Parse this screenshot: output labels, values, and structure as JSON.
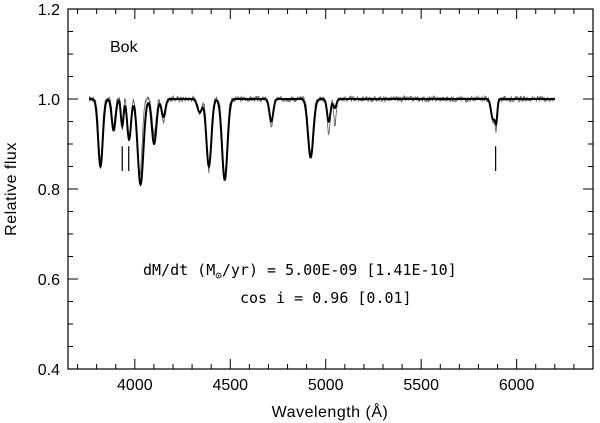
{
  "chart_data": {
    "type": "line",
    "xlabel": "Wavelength (Å)",
    "ylabel": "Relative flux",
    "xlim": [
      3650,
      6400
    ],
    "ylim": [
      0.4,
      1.2
    ],
    "x_ticks": [
      4000,
      4500,
      5000,
      5500,
      6000
    ],
    "y_ticks": [
      0.4,
      0.6,
      0.8,
      1.0,
      1.2
    ],
    "x_tick_labels": [
      "4000",
      "4500",
      "5000",
      "5500",
      "6000"
    ],
    "y_tick_labels": [
      "0.4",
      "0.6",
      "0.8",
      "1.0",
      "1.2"
    ],
    "annotation_top": "Bok",
    "annotation_line1_prefix": "dM/dt (M",
    "annotation_line1_sun": "⊙",
    "annotation_line1_suffix": "/yr) = 5.00E-09 [1.41E-10]",
    "annotation_line2": "cos i = 0.96 [0.01]",
    "marker_wavelengths": [
      3934,
      3968,
      5890
    ],
    "continuum": 1.0,
    "x_range": [
      3760,
      6200
    ],
    "model_lines": [
      {
        "center": 3820,
        "depth": 0.15,
        "width": 12
      },
      {
        "center": 3889,
        "depth": 0.07,
        "width": 10
      },
      {
        "center": 3934,
        "depth": 0.06,
        "width": 7
      },
      {
        "center": 3970,
        "depth": 0.09,
        "width": 10
      },
      {
        "center": 4030,
        "depth": 0.19,
        "width": 15
      },
      {
        "center": 4101,
        "depth": 0.1,
        "width": 12
      },
      {
        "center": 4150,
        "depth": 0.04,
        "width": 10
      },
      {
        "center": 4340,
        "depth": 0.03,
        "width": 12
      },
      {
        "center": 4388,
        "depth": 0.15,
        "width": 13
      },
      {
        "center": 4471,
        "depth": 0.18,
        "width": 14
      },
      {
        "center": 4715,
        "depth": 0.05,
        "width": 10
      },
      {
        "center": 4921,
        "depth": 0.13,
        "width": 14
      },
      {
        "center": 5016,
        "depth": 0.05,
        "width": 9
      },
      {
        "center": 5048,
        "depth": 0.02,
        "width": 8
      },
      {
        "center": 5876,
        "depth": 0.045,
        "width": 10
      },
      {
        "center": 5893,
        "depth": 0.045,
        "width": 6
      }
    ],
    "observed_lines": [
      {
        "center": 3820,
        "depth": 0.14,
        "width": 10
      },
      {
        "center": 3889,
        "depth": 0.06,
        "width": 8
      },
      {
        "center": 3934,
        "depth": 0.07,
        "width": 5
      },
      {
        "center": 3970,
        "depth": 0.09,
        "width": 8
      },
      {
        "center": 4026,
        "depth": 0.17,
        "width": 12
      },
      {
        "center": 4101,
        "depth": 0.08,
        "width": 10
      },
      {
        "center": 4150,
        "depth": 0.05,
        "width": 10
      },
      {
        "center": 4340,
        "depth": 0.03,
        "width": 10
      },
      {
        "center": 4388,
        "depth": 0.16,
        "width": 11
      },
      {
        "center": 4471,
        "depth": 0.17,
        "width": 12
      },
      {
        "center": 4715,
        "depth": 0.06,
        "width": 9
      },
      {
        "center": 4921,
        "depth": 0.12,
        "width": 12
      },
      {
        "center": 5016,
        "depth": 0.08,
        "width": 7
      },
      {
        "center": 5048,
        "depth": 0.06,
        "width": 6
      },
      {
        "center": 5876,
        "depth": 0.05,
        "width": 9
      },
      {
        "center": 5893,
        "depth": 0.06,
        "width": 5
      }
    ]
  }
}
